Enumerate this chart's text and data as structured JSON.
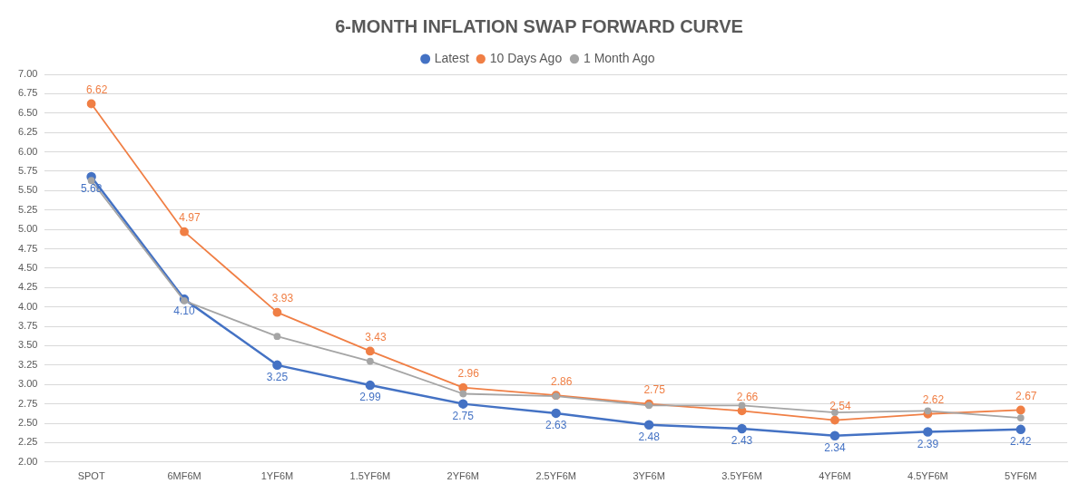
{
  "chart_data": {
    "type": "line",
    "title": "6-MONTH INFLATION SWAP FORWARD CURVE",
    "categories": [
      "SPOT",
      "6MF6M",
      "1YF6M",
      "1.5YF6M",
      "2YF6M",
      "2.5YF6M",
      "3YF6M",
      "3.5YF6M",
      "4YF6M",
      "4.5YF6M",
      "5YF6M"
    ],
    "series": [
      {
        "name": "Latest",
        "color": "#4472c4",
        "values": [
          5.68,
          4.1,
          3.25,
          2.99,
          2.75,
          2.63,
          2.48,
          2.43,
          2.34,
          2.39,
          2.42
        ],
        "value_labels": [
          "5.68",
          "4.10",
          "3.25",
          "2.99",
          "2.75",
          "2.63",
          "2.48",
          "2.43",
          "2.34",
          "2.39",
          "2.42"
        ]
      },
      {
        "name": "10 Days Ago",
        "color": "#f07f45",
        "values": [
          6.62,
          4.97,
          3.93,
          3.43,
          2.96,
          2.86,
          2.75,
          2.66,
          2.54,
          2.62,
          2.67
        ],
        "value_labels": [
          "6.62",
          "4.97",
          "3.93",
          "3.43",
          "2.96",
          "2.86",
          "2.75",
          "2.66",
          "2.54",
          "2.62",
          "2.67"
        ]
      },
      {
        "name": "1 Month Ago",
        "color": "#a5a5a5",
        "values": [
          5.63,
          4.08,
          3.62,
          3.3,
          2.88,
          2.85,
          2.73,
          2.73,
          2.64,
          2.66,
          2.57
        ]
      }
    ],
    "ylim": [
      2,
      7
    ],
    "yticks": [
      {
        "value": 2,
        "label": "2.00"
      },
      {
        "value": 2.25,
        "label": "2.25"
      },
      {
        "value": 2.5,
        "label": "2.50"
      },
      {
        "value": 2.75,
        "label": "2.75"
      },
      {
        "value": 3,
        "label": "3.00"
      },
      {
        "value": 3.25,
        "label": "3.25"
      },
      {
        "value": 3.5,
        "label": "3.50"
      },
      {
        "value": 3.75,
        "label": "3.75"
      },
      {
        "value": 4,
        "label": "4.00"
      },
      {
        "value": 4.25,
        "label": "4.25"
      },
      {
        "value": 4.5,
        "label": "4.50"
      },
      {
        "value": 4.75,
        "label": "4.75"
      },
      {
        "value": 5,
        "label": "5.00"
      },
      {
        "value": 5.25,
        "label": "5.25"
      },
      {
        "value": 5.5,
        "label": "5.50"
      },
      {
        "value": 5.75,
        "label": "5.75"
      },
      {
        "value": 6,
        "label": "6.00"
      },
      {
        "value": 6.25,
        "label": "6.25"
      },
      {
        "value": 6.5,
        "label": "6.50"
      },
      {
        "value": 6.75,
        "label": "6.75"
      },
      {
        "value": 7,
        "label": "7.00"
      }
    ],
    "grid": "y",
    "legend": "top",
    "marker": "circle",
    "line_style": "solid"
  }
}
